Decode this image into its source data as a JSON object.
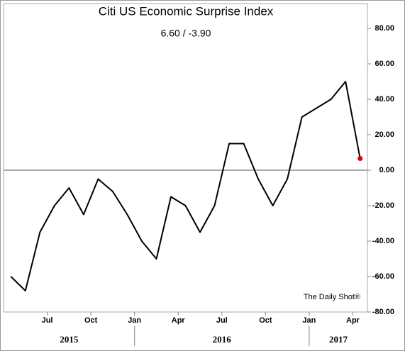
{
  "chart_data": {
    "type": "line",
    "title": "Citi US Economic Surprise Index",
    "subtitle": "6.60  /  -3.90",
    "annotation": "The Daily Shot®",
    "x": [
      "2015-04",
      "2015-05",
      "2015-06",
      "2015-07",
      "2015-08",
      "2015-09",
      "2015-10",
      "2015-11",
      "2015-12",
      "2016-01",
      "2016-02",
      "2016-03",
      "2016-04",
      "2016-05",
      "2016-06",
      "2016-07",
      "2016-08",
      "2016-09",
      "2016-10",
      "2016-11",
      "2016-12",
      "2017-01",
      "2017-02",
      "2017-03",
      "2017-04"
    ],
    "series": [
      {
        "name": "Citi US Economic Surprise Index",
        "color": "#000000",
        "values": [
          -60,
          -68,
          -35,
          -20,
          -10,
          -25,
          -5,
          -12,
          -25,
          -40,
          -50,
          -15,
          -20,
          -35,
          -20,
          15,
          15,
          -5,
          -20,
          -5,
          30,
          35,
          40,
          50,
          6.6
        ]
      }
    ],
    "end_marker_color": "#e00000",
    "xlim": [
      "2015-04",
      "2017-05"
    ],
    "xticks": [
      {
        "value": "2015-07",
        "label": "Jul"
      },
      {
        "value": "2015-10",
        "label": "Oct"
      },
      {
        "value": "2016-01",
        "label": "Jan"
      },
      {
        "value": "2016-04",
        "label": "Apr"
      },
      {
        "value": "2016-07",
        "label": "Jul"
      },
      {
        "value": "2016-10",
        "label": "Oct"
      },
      {
        "value": "2017-01",
        "label": "Jan"
      },
      {
        "value": "2017-04",
        "label": "Apr"
      }
    ],
    "years": [
      2015,
      2016,
      2017
    ],
    "ylim": [
      -80,
      94
    ],
    "yticks": [
      {
        "value": -80,
        "label": "-80.00"
      },
      {
        "value": -60,
        "label": "-60.00"
      },
      {
        "value": -40,
        "label": "-40.00"
      },
      {
        "value": -20,
        "label": "-20.00"
      },
      {
        "value": 0,
        "label": "0.00"
      },
      {
        "value": 20,
        "label": "20.00"
      },
      {
        "value": 40,
        "label": "40.00"
      },
      {
        "value": 60,
        "label": "60.00"
      },
      {
        "value": 80,
        "label": "80.00"
      }
    ],
    "zero_line": true
  }
}
